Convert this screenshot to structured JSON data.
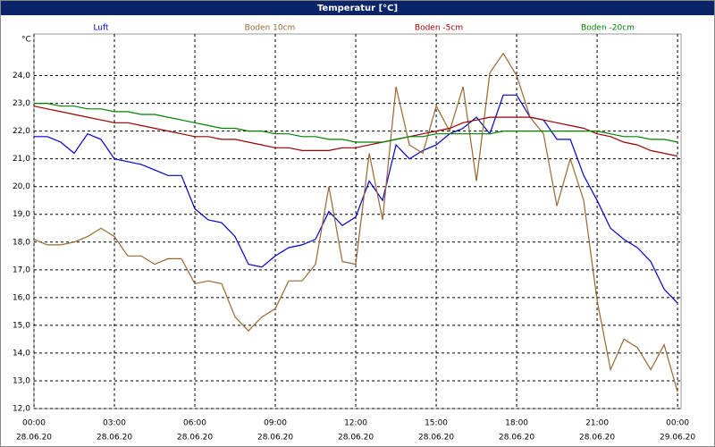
{
  "chart_data": {
    "type": "line",
    "title": "Temperatur [°C]",
    "y_unit": "°C",
    "x": [
      0,
      0.5,
      1,
      1.5,
      2,
      2.5,
      3,
      3.5,
      4,
      4.5,
      5,
      5.5,
      6,
      6.5,
      7,
      7.5,
      8,
      8.5,
      9,
      9.5,
      10,
      10.5,
      11,
      11.5,
      12,
      12.5,
      13,
      13.5,
      14,
      14.5,
      15,
      15.5,
      16,
      16.5,
      17,
      17.5,
      18,
      18.5,
      19,
      19.5,
      20,
      20.5,
      21,
      21.5,
      22,
      22.5,
      23,
      23.5,
      24
    ],
    "series": [
      {
        "name": "Luft",
        "color": "#0000cc",
        "values": [
          21.8,
          21.8,
          21.6,
          21.2,
          21.9,
          21.7,
          21.0,
          20.9,
          20.8,
          20.6,
          20.4,
          20.4,
          19.2,
          18.8,
          18.7,
          18.2,
          17.2,
          17.1,
          17.5,
          17.8,
          17.9,
          18.1,
          19.1,
          18.6,
          18.9,
          20.2,
          19.5,
          21.5,
          21.0,
          21.3,
          21.5,
          21.9,
          22.1,
          22.5,
          21.9,
          23.3,
          23.3,
          22.5,
          22.4,
          21.7,
          21.7,
          20.4,
          19.5,
          18.5,
          18.1,
          17.8,
          17.3,
          16.3,
          15.8
        ]
      },
      {
        "name": "Boden 10cm",
        "color": "#996633",
        "values": [
          18.1,
          17.9,
          17.9,
          18.0,
          18.2,
          18.5,
          18.2,
          17.5,
          17.5,
          17.2,
          17.4,
          17.4,
          16.5,
          16.6,
          16.5,
          15.3,
          14.8,
          15.3,
          15.6,
          16.6,
          16.6,
          17.2,
          20.0,
          17.3,
          17.2,
          21.2,
          18.8,
          23.6,
          21.5,
          21.2,
          22.9,
          22.0,
          23.6,
          20.2,
          24.1,
          24.8,
          24.0,
          22.5,
          21.9,
          19.3,
          21.0,
          19.5,
          15.9,
          13.4,
          14.5,
          14.2,
          13.4,
          14.3,
          12.6
        ]
      },
      {
        "name": "Boden -5cm",
        "color": "#990000",
        "values": [
          22.9,
          22.8,
          22.7,
          22.6,
          22.5,
          22.4,
          22.3,
          22.3,
          22.2,
          22.1,
          22.0,
          21.9,
          21.8,
          21.8,
          21.7,
          21.7,
          21.6,
          21.5,
          21.4,
          21.4,
          21.3,
          21.3,
          21.3,
          21.4,
          21.4,
          21.5,
          21.6,
          21.7,
          21.8,
          21.9,
          22.0,
          22.1,
          22.3,
          22.4,
          22.5,
          22.5,
          22.5,
          22.5,
          22.4,
          22.3,
          22.2,
          22.1,
          21.9,
          21.8,
          21.6,
          21.5,
          21.3,
          21.2,
          21.1
        ]
      },
      {
        "name": "Boden -20cm",
        "color": "#008000",
        "values": [
          23.0,
          23.0,
          22.9,
          22.9,
          22.8,
          22.8,
          22.7,
          22.7,
          22.6,
          22.6,
          22.5,
          22.4,
          22.3,
          22.2,
          22.1,
          22.1,
          22.0,
          22.0,
          21.9,
          21.9,
          21.8,
          21.8,
          21.7,
          21.7,
          21.6,
          21.6,
          21.6,
          21.7,
          21.8,
          21.8,
          21.9,
          21.9,
          21.9,
          21.9,
          21.9,
          22.0,
          22.0,
          22.0,
          22.0,
          22.0,
          22.0,
          22.0,
          22.0,
          21.9,
          21.8,
          21.8,
          21.7,
          21.7,
          21.6
        ]
      }
    ],
    "xlim": [
      0,
      24.13
    ],
    "xticks": [
      {
        "value": 0,
        "label": "00:00"
      },
      {
        "value": 3,
        "label": "03:00"
      },
      {
        "value": 6,
        "label": "06:00"
      },
      {
        "value": 9,
        "label": "09:00"
      },
      {
        "value": 12,
        "label": "12:00"
      },
      {
        "value": 15,
        "label": "15:00"
      },
      {
        "value": 18,
        "label": "18:00"
      },
      {
        "value": 21,
        "label": "21:00"
      },
      {
        "value": 24,
        "label": "00:00"
      }
    ],
    "xtick_dates": [
      "28.06.20",
      "28.06.20",
      "28.06.20",
      "28.06.20",
      "28.06.20",
      "28.06.20",
      "28.06.20",
      "28.06.20",
      "29.06.20"
    ],
    "ylim": [
      12,
      25.5
    ],
    "yticks": [
      {
        "value": 12,
        "label": "12,0"
      },
      {
        "value": 13,
        "label": "13,0"
      },
      {
        "value": 14,
        "label": "14,0"
      },
      {
        "value": 15,
        "label": "15,0"
      },
      {
        "value": 16,
        "label": "16,0"
      },
      {
        "value": 17,
        "label": "17,0"
      },
      {
        "value": 18,
        "label": "18,0"
      },
      {
        "value": 19,
        "label": "19,0"
      },
      {
        "value": 20,
        "label": "20,0"
      },
      {
        "value": 21,
        "label": "21,0"
      },
      {
        "value": 22,
        "label": "22,0"
      },
      {
        "value": 23,
        "label": "23,0"
      },
      {
        "value": 24,
        "label": "24,0"
      }
    ],
    "grid": true
  }
}
